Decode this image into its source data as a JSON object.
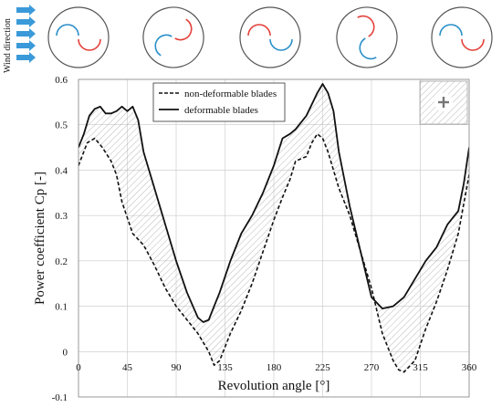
{
  "header": {
    "wind_direction_label": "Wind direction"
  },
  "colors": {
    "blade_red": "#e4413b",
    "blade_blue": "#2a8fc9",
    "arrow_blue": "#3a9ad9",
    "line": "#111111",
    "grid": "#c8c8c8",
    "hatch": "#9a9a9a"
  },
  "chart_data": {
    "type": "line",
    "xlabel": "Revolution angle [°]",
    "ylabel": "Power coefficient Cp [-]",
    "xlim": [
      0,
      360
    ],
    "ylim": [
      -0.1,
      0.6
    ],
    "xticks": [
      "0",
      "45",
      "90",
      "135",
      "180",
      "225",
      "270",
      "315",
      "360"
    ],
    "yticks": [
      "-0.1",
      "0",
      "0.1",
      "0.2",
      "0.3",
      "0.4",
      "0.5",
      "0.6"
    ],
    "grid": true,
    "legend_position": "top-center",
    "series": [
      {
        "name": "non-deformable blades",
        "style": "dashed",
        "x": [
          0,
          8,
          15,
          22,
          30,
          35,
          40,
          50,
          60,
          70,
          80,
          90,
          100,
          110,
          115,
          120,
          125,
          130,
          140,
          150,
          160,
          170,
          180,
          188,
          195,
          200,
          210,
          215,
          220,
          225,
          230,
          240,
          250,
          260,
          270,
          280,
          290,
          295,
          300,
          310,
          320,
          330,
          340,
          350,
          360
        ],
        "y": [
          0.41,
          0.46,
          0.47,
          0.45,
          0.42,
          0.39,
          0.33,
          0.26,
          0.235,
          0.19,
          0.14,
          0.1,
          0.07,
          0.04,
          0.02,
          0.0,
          -0.03,
          -0.02,
          0.04,
          0.09,
          0.15,
          0.22,
          0.29,
          0.34,
          0.38,
          0.42,
          0.43,
          0.46,
          0.48,
          0.47,
          0.44,
          0.36,
          0.3,
          0.22,
          0.14,
          0.04,
          -0.02,
          -0.04,
          -0.045,
          -0.02,
          0.05,
          0.11,
          0.18,
          0.26,
          0.39
        ]
      },
      {
        "name": "deformable blades",
        "style": "solid",
        "x": [
          0,
          5,
          10,
          15,
          20,
          25,
          30,
          35,
          40,
          45,
          50,
          55,
          60,
          70,
          80,
          90,
          100,
          110,
          115,
          120,
          125,
          130,
          140,
          150,
          160,
          170,
          180,
          188,
          195,
          200,
          210,
          220,
          225,
          230,
          235,
          240,
          250,
          260,
          270,
          280,
          290,
          300,
          310,
          320,
          330,
          340,
          350,
          355,
          360
        ],
        "y": [
          0.45,
          0.48,
          0.52,
          0.535,
          0.54,
          0.525,
          0.525,
          0.53,
          0.54,
          0.53,
          0.54,
          0.51,
          0.44,
          0.36,
          0.28,
          0.2,
          0.13,
          0.075,
          0.065,
          0.07,
          0.1,
          0.13,
          0.2,
          0.26,
          0.3,
          0.35,
          0.41,
          0.47,
          0.48,
          0.49,
          0.52,
          0.57,
          0.59,
          0.57,
          0.53,
          0.44,
          0.32,
          0.22,
          0.12,
          0.095,
          0.1,
          0.12,
          0.16,
          0.2,
          0.23,
          0.28,
          0.31,
          0.37,
          0.45
        ]
      }
    ]
  }
}
